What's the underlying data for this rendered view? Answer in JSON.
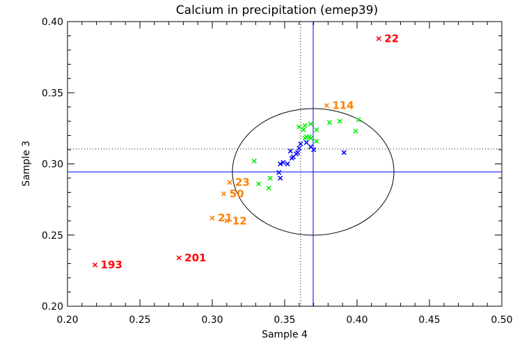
{
  "chart_data": {
    "type": "scatter",
    "title": "Calcium in precipitation (emep39)",
    "xlabel": "Sample 4",
    "ylabel": "Sample 3",
    "xlim": [
      0.2,
      0.5
    ],
    "ylim": [
      0.2,
      0.4
    ],
    "xticks": [
      "0.20",
      "0.25",
      "0.30",
      "0.35",
      "0.40",
      "0.45",
      "0.50"
    ],
    "yticks": [
      "0.20",
      "0.25",
      "0.30",
      "0.35",
      "0.40"
    ],
    "xtick_values": [
      0.2,
      0.25,
      0.3,
      0.35,
      0.4,
      0.45,
      0.5
    ],
    "ytick_values": [
      0.2,
      0.25,
      0.3,
      0.35,
      0.4
    ],
    "grid": false,
    "reference_lines": {
      "assigned_x": 0.3697,
      "assigned_y": 0.2944,
      "median_x": 0.361,
      "median_y": 0.3105,
      "assigned_color": "#0000ff",
      "median_color": "#000000"
    },
    "ellipse": {
      "center": [
        0.3697,
        0.2944
      ],
      "half_width_x": 0.0558,
      "half_height_y": 0.0445,
      "color": "#000000"
    },
    "series": [
      {
        "name": "central",
        "color": "#0000ff",
        "points": [
          [
            0.361,
            0.314
          ],
          [
            0.365,
            0.315
          ],
          [
            0.368,
            0.312
          ],
          [
            0.37,
            0.31
          ],
          [
            0.354,
            0.309
          ],
          [
            0.36,
            0.311
          ],
          [
            0.359,
            0.308
          ],
          [
            0.356,
            0.305
          ],
          [
            0.355,
            0.304
          ],
          [
            0.358,
            0.307
          ],
          [
            0.349,
            0.301
          ],
          [
            0.347,
            0.3
          ],
          [
            0.352,
            0.3
          ],
          [
            0.346,
            0.294
          ],
          [
            0.347,
            0.29
          ],
          [
            0.391,
            0.308
          ]
        ]
      },
      {
        "name": "inside-ellipse",
        "color": "#00ee00",
        "points": [
          [
            0.329,
            0.302
          ],
          [
            0.34,
            0.29
          ],
          [
            0.332,
            0.286
          ],
          [
            0.339,
            0.283
          ],
          [
            0.36,
            0.326
          ],
          [
            0.363,
            0.324
          ],
          [
            0.364,
            0.327
          ],
          [
            0.368,
            0.328
          ],
          [
            0.372,
            0.324
          ],
          [
            0.364,
            0.318
          ],
          [
            0.365,
            0.319
          ],
          [
            0.367,
            0.319
          ],
          [
            0.368,
            0.318
          ],
          [
            0.372,
            0.316
          ],
          [
            0.381,
            0.329
          ],
          [
            0.388,
            0.33
          ],
          [
            0.401,
            0.331
          ],
          [
            0.399,
            0.323
          ]
        ]
      },
      {
        "name": "warning",
        "color": "#ff7f00",
        "points": [
          [
            0.379,
            0.341
          ],
          [
            0.312,
            0.287
          ],
          [
            0.308,
            0.279
          ],
          [
            0.3,
            0.262
          ],
          [
            0.31,
            0.26
          ]
        ],
        "labels": [
          "114",
          "23",
          "50",
          "21",
          "12"
        ]
      },
      {
        "name": "outlier",
        "color": "#ff0000",
        "points": [
          [
            0.415,
            0.388
          ],
          [
            0.219,
            0.229
          ],
          [
            0.277,
            0.234
          ]
        ],
        "labels": [
          "22",
          "193",
          "201"
        ]
      }
    ]
  }
}
